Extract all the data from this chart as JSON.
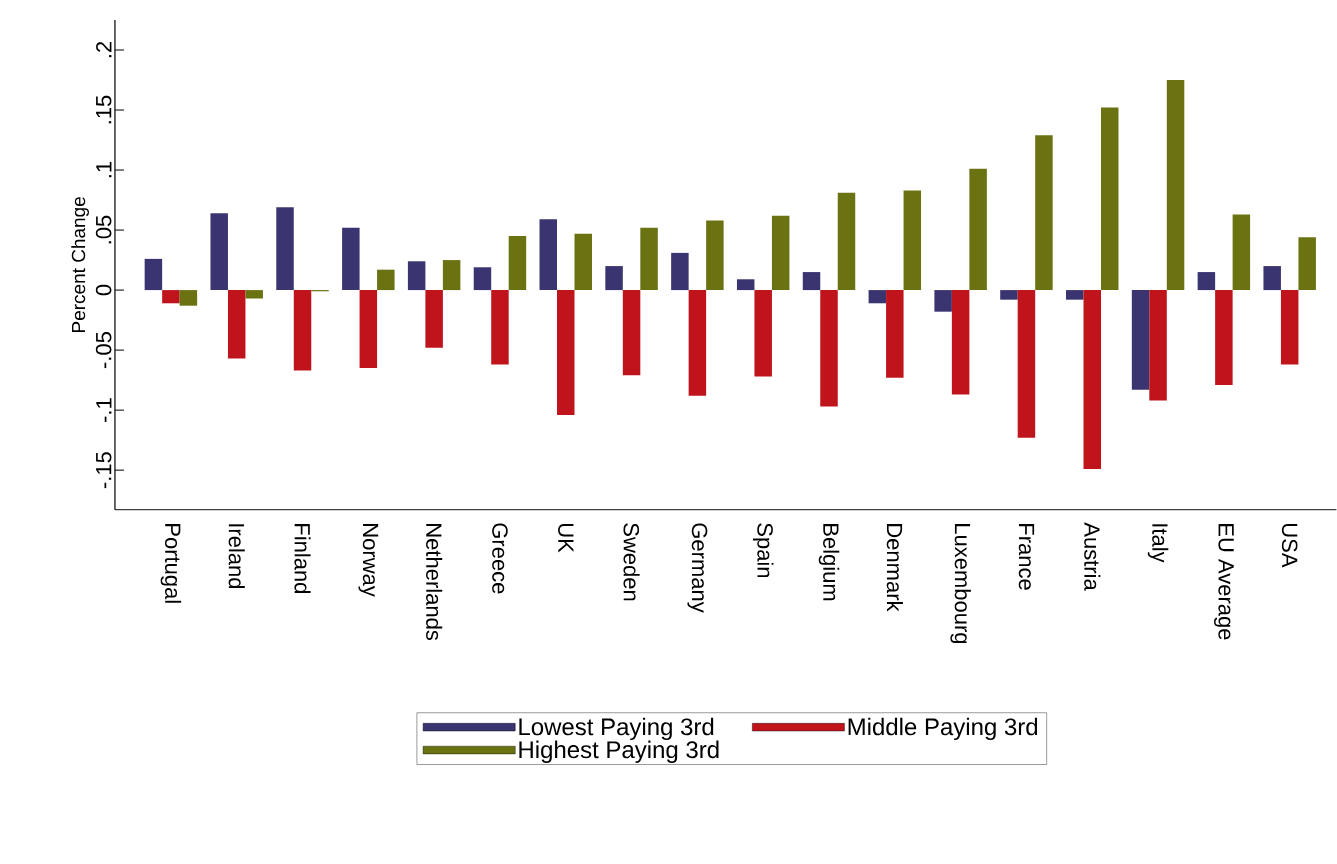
{
  "chart_data": {
    "type": "bar",
    "ylabel": "Percent Change",
    "legend": "bottom",
    "categories": [
      "Portugal",
      "Ireland",
      "Finland",
      "Norway",
      "Netherlands",
      "Greece",
      "UK",
      "Sweden",
      "Germany",
      "Spain",
      "Belgium",
      "Denmark",
      "Luxembourg",
      "France",
      "Austria",
      "Italy",
      "EU Average",
      "USA"
    ],
    "ylim": [
      -0.183,
      0.225
    ],
    "yticks": [
      {
        "value": -0.15,
        "label": "-.15"
      },
      {
        "value": -0.1,
        "label": "-.1"
      },
      {
        "value": -0.05,
        "label": "-.05"
      },
      0,
      {
        "value": 0.05,
        "label": ".05"
      },
      {
        "value": 0.1,
        "label": ".1"
      },
      {
        "value": 0.15,
        "label": ".15"
      },
      {
        "value": 0.2,
        "label": ".2"
      }
    ],
    "series": [
      {
        "name": "Lowest Paying 3rd",
        "color": "#3a3570",
        "values": [
          0.026,
          0.064,
          0.069,
          0.052,
          0.024,
          0.019,
          0.059,
          0.02,
          0.031,
          0.009,
          0.015,
          -0.011,
          -0.018,
          -0.008,
          -0.008,
          -0.083,
          0.015,
          0.02
        ]
      },
      {
        "name": "Middle Paying 3rd",
        "color": "#c0141c",
        "values": [
          -0.011,
          -0.057,
          -0.067,
          -0.065,
          -0.048,
          -0.062,
          -0.104,
          -0.071,
          -0.088,
          -0.072,
          -0.097,
          -0.073,
          -0.087,
          -0.123,
          -0.149,
          -0.092,
          -0.079,
          -0.062
        ]
      },
      {
        "name": "Highest Paying 3rd",
        "color": "#6b7212",
        "values": [
          -0.013,
          -0.007,
          -0.001,
          0.017,
          0.025,
          0.045,
          0.047,
          0.052,
          0.058,
          0.062,
          0.081,
          0.083,
          0.101,
          0.129,
          0.152,
          0.175,
          0.063,
          0.044
        ]
      }
    ]
  }
}
